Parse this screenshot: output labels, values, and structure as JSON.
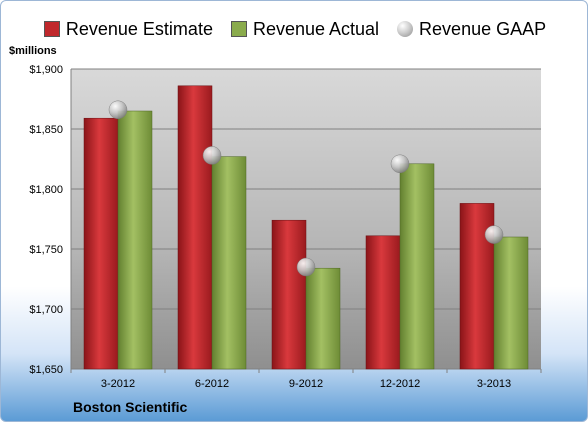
{
  "units_label": "$millions",
  "company": "Boston Scientific",
  "colors": {
    "estimate": "#c0282c",
    "actual": "#8aab4c",
    "gaap": "#b8b8b8"
  },
  "chart_data": {
    "type": "bar",
    "categories": [
      "3-2012",
      "6-2012",
      "9-2012",
      "12-2012",
      "3-2013"
    ],
    "series": [
      {
        "name": "Revenue Estimate",
        "kind": "bar",
        "values": [
          1859,
          1886,
          1774,
          1761,
          1788
        ]
      },
      {
        "name": "Revenue Actual",
        "kind": "bar",
        "values": [
          1865,
          1827,
          1734,
          1821,
          1760
        ]
      },
      {
        "name": "Revenue GAAP",
        "kind": "marker",
        "values": [
          1866,
          1828,
          1735,
          1821,
          1762
        ]
      }
    ],
    "yticks": [
      "$1,650",
      "$1,700",
      "$1,750",
      "$1,800",
      "$1,850",
      "$1,900"
    ],
    "ylim": [
      1650,
      1900
    ],
    "grid": true,
    "legend": "top"
  }
}
